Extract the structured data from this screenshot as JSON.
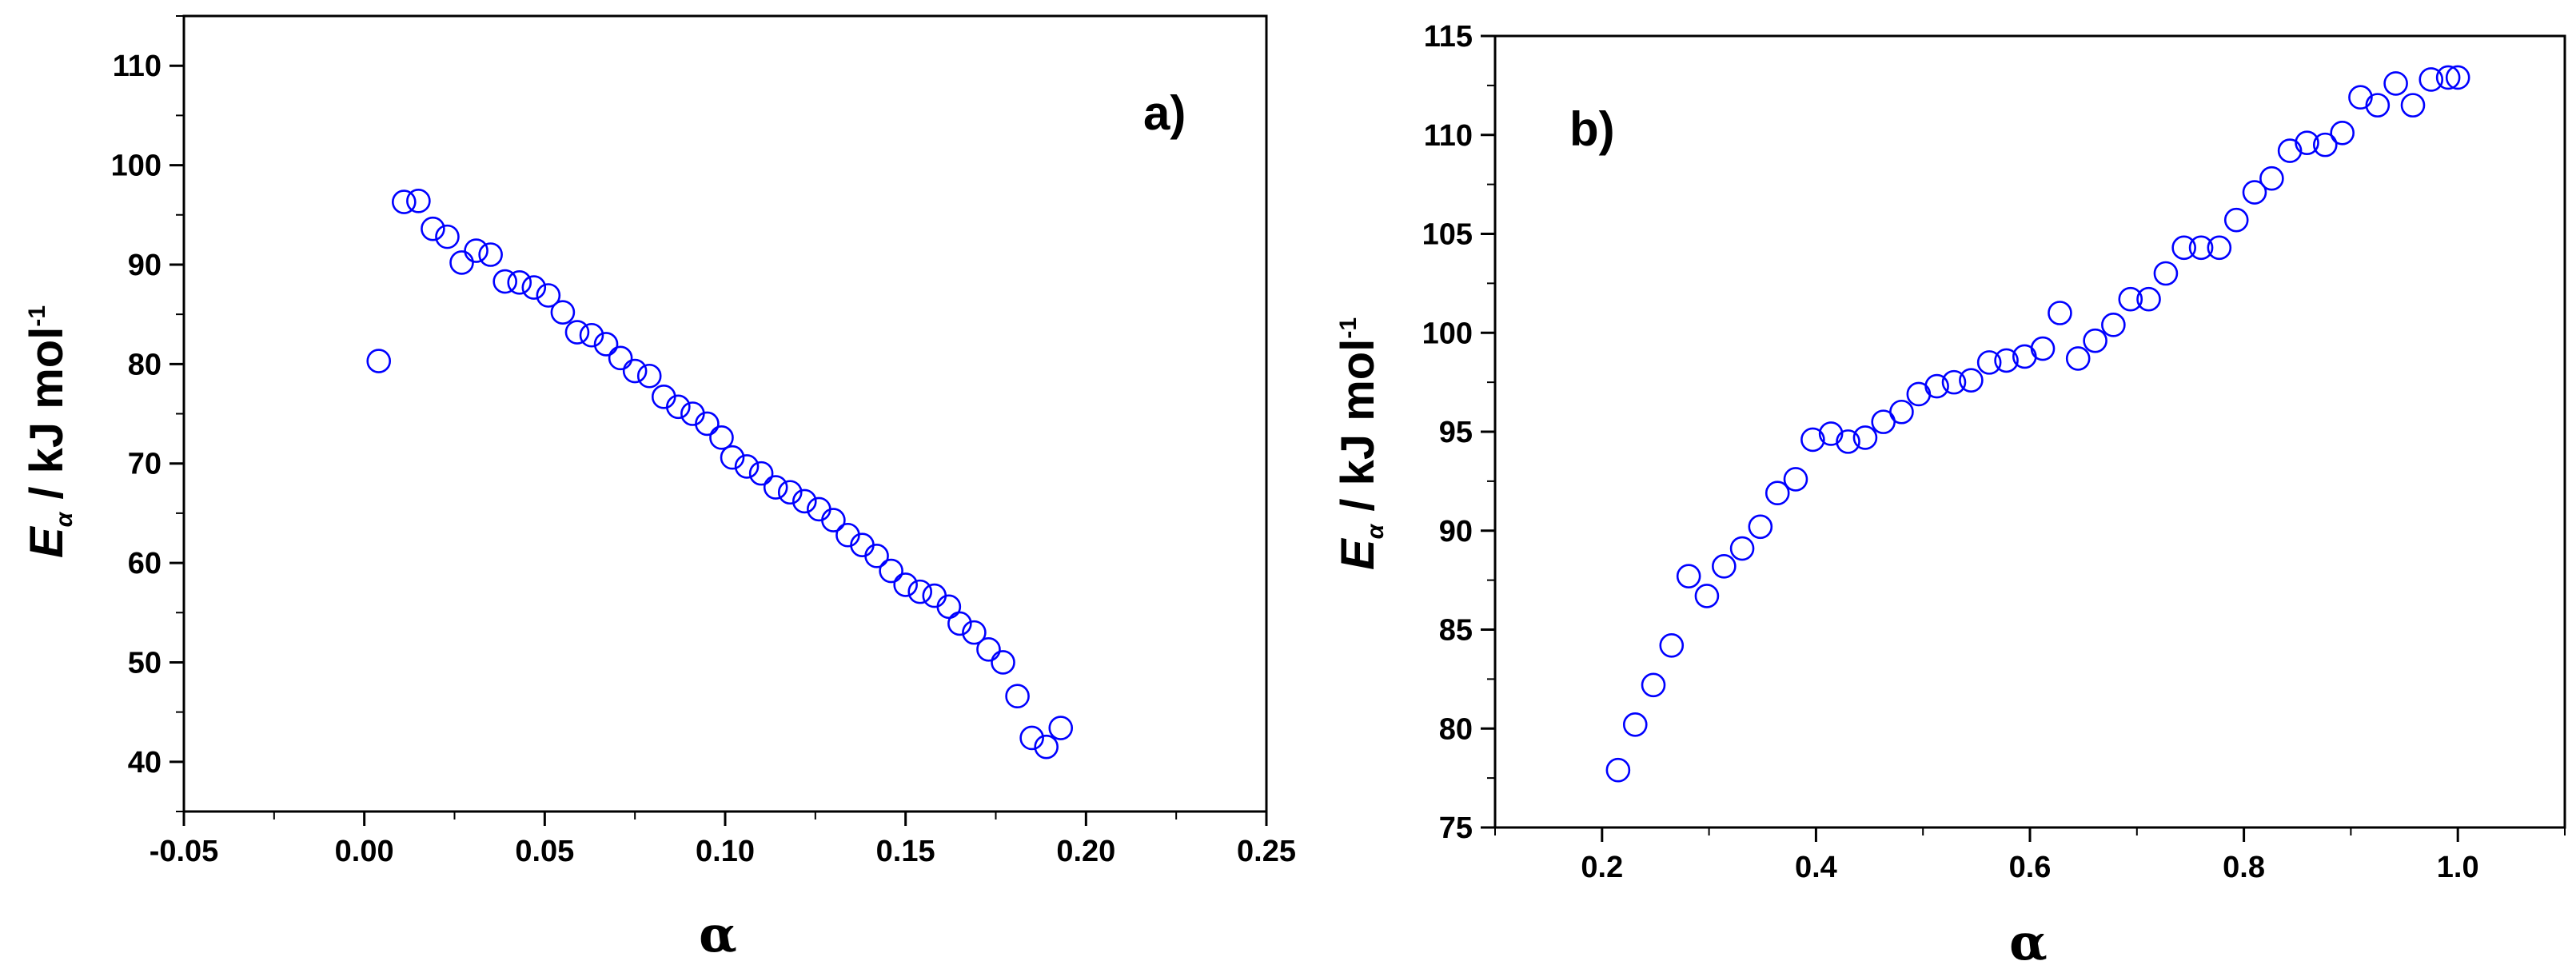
{
  "chart_data": [
    {
      "type": "scatter",
      "panel_label": "a)",
      "xlabel": "α",
      "ylabel": {
        "symbol": "E",
        "subscript": "α",
        "text": " / kJ mol",
        "superscript": "-1"
      },
      "xlim": [
        -0.05,
        0.25
      ],
      "ylim": [
        35,
        115
      ],
      "xticks": [
        -0.05,
        0.0,
        0.05,
        0.1,
        0.15,
        0.2,
        0.25
      ],
      "xtick_labels": [
        "-0.05",
        "0.00",
        "0.05",
        "0.10",
        "0.15",
        "0.20",
        "0.25"
      ],
      "yticks": [
        40,
        50,
        60,
        70,
        80,
        90,
        100,
        110
      ],
      "ytick_labels": [
        "40",
        "50",
        "60",
        "70",
        "80",
        "90",
        "100",
        "110"
      ],
      "marker_color": "#0000ff",
      "x": [
        0.004,
        0.011,
        0.015,
        0.019,
        0.023,
        0.027,
        0.031,
        0.035,
        0.039,
        0.043,
        0.047,
        0.051,
        0.055,
        0.059,
        0.063,
        0.067,
        0.071,
        0.075,
        0.079,
        0.083,
        0.087,
        0.091,
        0.095,
        0.099,
        0.102,
        0.106,
        0.11,
        0.114,
        0.118,
        0.122,
        0.126,
        0.13,
        0.134,
        0.138,
        0.142,
        0.146,
        0.15,
        0.154,
        0.158,
        0.162,
        0.165,
        0.169,
        0.173,
        0.177,
        0.181,
        0.185,
        0.189,
        0.193
      ],
      "y": [
        80.3,
        96.3,
        96.4,
        93.6,
        92.8,
        90.2,
        91.4,
        91.0,
        88.3,
        88.2,
        87.7,
        86.9,
        85.2,
        83.2,
        82.9,
        82.0,
        80.6,
        79.3,
        78.8,
        76.7,
        75.7,
        75.0,
        74.0,
        72.6,
        70.6,
        69.7,
        69.0,
        67.6,
        67.1,
        66.2,
        65.4,
        64.3,
        62.8,
        61.8,
        60.7,
        59.2,
        57.8,
        57.1,
        56.7,
        55.6,
        53.9,
        53.0,
        51.3,
        50.0,
        46.6,
        42.4,
        41.5,
        43.4
      ]
    },
    {
      "type": "scatter",
      "panel_label": "b)",
      "xlabel": "α",
      "ylabel": {
        "symbol": "E",
        "subscript": "α",
        "text": " / kJ mol",
        "superscript": "-1"
      },
      "xlim": [
        0.1,
        1.1
      ],
      "ylim": [
        75,
        115
      ],
      "xticks": [
        0.2,
        0.4,
        0.6,
        0.8,
        1.0
      ],
      "xtick_labels": [
        "0.2",
        "0.4",
        "0.6",
        "0.8",
        "1.0"
      ],
      "yticks": [
        75,
        80,
        85,
        90,
        95,
        100,
        105,
        110,
        115
      ],
      "ytick_labels": [
        "75",
        "80",
        "85",
        "90",
        "95",
        "100",
        "105",
        "110",
        "115"
      ],
      "marker_color": "#0000ff",
      "x": [
        0.215,
        0.231,
        0.248,
        0.265,
        0.281,
        0.298,
        0.314,
        0.331,
        0.348,
        0.364,
        0.381,
        0.397,
        0.414,
        0.43,
        0.446,
        0.463,
        0.48,
        0.496,
        0.513,
        0.529,
        0.545,
        0.562,
        0.578,
        0.595,
        0.612,
        0.628,
        0.645,
        0.661,
        0.678,
        0.694,
        0.711,
        0.727,
        0.744,
        0.76,
        0.777,
        0.793,
        0.81,
        0.826,
        0.843,
        0.859,
        0.876,
        0.892,
        0.909,
        0.925,
        0.942,
        0.958,
        0.975,
        0.991,
        1.0
      ],
      "y": [
        77.9,
        80.2,
        82.2,
        84.2,
        87.7,
        86.7,
        88.2,
        89.1,
        90.2,
        91.9,
        92.6,
        94.6,
        94.9,
        94.5,
        94.7,
        95.5,
        96.0,
        96.9,
        97.3,
        97.5,
        97.6,
        98.5,
        98.6,
        98.8,
        99.2,
        101.0,
        98.7,
        99.6,
        100.4,
        101.7,
        101.7,
        103.0,
        104.3,
        104.3,
        104.3,
        105.7,
        107.1,
        107.8,
        109.2,
        109.6,
        109.5,
        110.1,
        111.9,
        111.5,
        112.6,
        111.5,
        112.8,
        112.9,
        112.9
      ]
    }
  ]
}
